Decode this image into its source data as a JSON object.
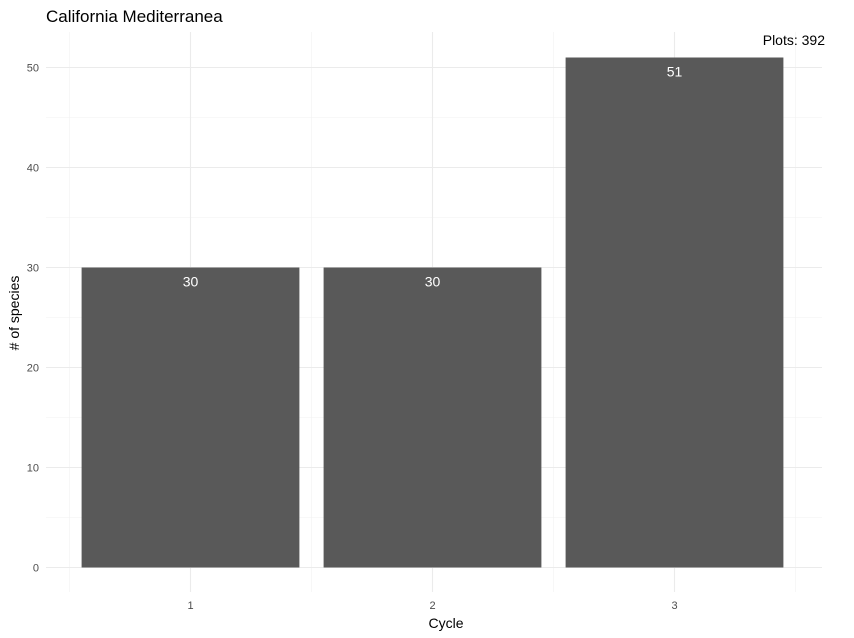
{
  "chart_data": {
    "type": "bar",
    "title": "California Mediterranea",
    "annotation": "Plots: 392",
    "xlabel": "Cycle",
    "ylabel": "# of species",
    "categories": [
      "1",
      "2",
      "3"
    ],
    "values": [
      30,
      30,
      51
    ],
    "bar_labels": [
      "30",
      "30",
      "51"
    ],
    "ylim": [
      0,
      53.5
    ],
    "yticks": [
      0,
      10,
      20,
      30,
      40,
      50
    ],
    "grid": true,
    "bar_color": "#595959",
    "label_color": "#ffffff"
  }
}
